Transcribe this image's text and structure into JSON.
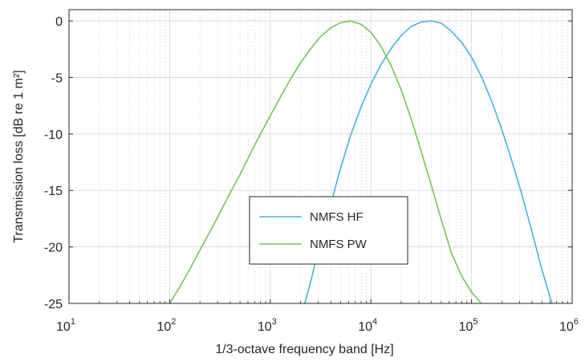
{
  "chart_data": {
    "type": "line",
    "xlabel": "1/3-octave frequency band [Hz]",
    "ylabel": "Transmission loss  [dB re 1 m²]",
    "xscale": "log",
    "xlim": [
      10,
      1000000
    ],
    "ylim": [
      -25,
      1
    ],
    "x_ticks": [
      10,
      100,
      1000,
      10000,
      100000,
      1000000
    ],
    "x_tick_labels": [
      {
        "base": "10",
        "exp": "1"
      },
      {
        "base": "10",
        "exp": "2"
      },
      {
        "base": "10",
        "exp": "3"
      },
      {
        "base": "10",
        "exp": "4"
      },
      {
        "base": "10",
        "exp": "5"
      },
      {
        "base": "10",
        "exp": "6"
      }
    ],
    "y_ticks": [
      0,
      -5,
      -10,
      -15,
      -20,
      -25
    ],
    "y_tick_labels": [
      "0",
      "-5",
      "-10",
      "-15",
      "-20",
      "-25"
    ],
    "grid": true,
    "minor_grid": true,
    "legend_position": "lower-center",
    "series": [
      {
        "name": "NMFS HF",
        "color": "#4DAFD8",
        "x": [
          2200,
          2500,
          3000,
          4000,
          5000,
          6300,
          8000,
          10000,
          12500,
          16000,
          20000,
          25000,
          31500,
          40000,
          50000,
          63000,
          80000,
          100000,
          125000,
          160000,
          200000,
          250000,
          315000,
          400000,
          500000,
          630000
        ],
        "y": [
          -25,
          -23.2,
          -20.3,
          -16.2,
          -13.0,
          -10.1,
          -7.6,
          -5.6,
          -3.9,
          -2.4,
          -1.3,
          -0.5,
          -0.1,
          0,
          -0.2,
          -0.9,
          -1.9,
          -3.2,
          -4.9,
          -7.2,
          -9.6,
          -12.3,
          -15.3,
          -18.7,
          -22.0,
          -25
        ]
      },
      {
        "name": "NMFS PW",
        "color": "#78C25C",
        "x": [
          100,
          125,
          160,
          200,
          250,
          315,
          400,
          500,
          630,
          800,
          1000,
          1250,
          1600,
          2000,
          2500,
          3150,
          4000,
          5000,
          6300,
          8000,
          10000,
          12500,
          16000,
          20000,
          25000,
          31500,
          40000,
          50000,
          63000,
          80000,
          100000,
          125000
        ],
        "y": [
          -25,
          -23.6,
          -21.9,
          -20.3,
          -18.7,
          -17.0,
          -15.2,
          -13.6,
          -11.8,
          -10.0,
          -8.4,
          -6.8,
          -5.1,
          -3.7,
          -2.5,
          -1.4,
          -0.6,
          -0.15,
          0,
          -0.3,
          -1.0,
          -2.2,
          -4.0,
          -6.1,
          -8.6,
          -11.5,
          -14.6,
          -17.6,
          -20.5,
          -22.6,
          -24.0,
          -25
        ]
      }
    ]
  }
}
